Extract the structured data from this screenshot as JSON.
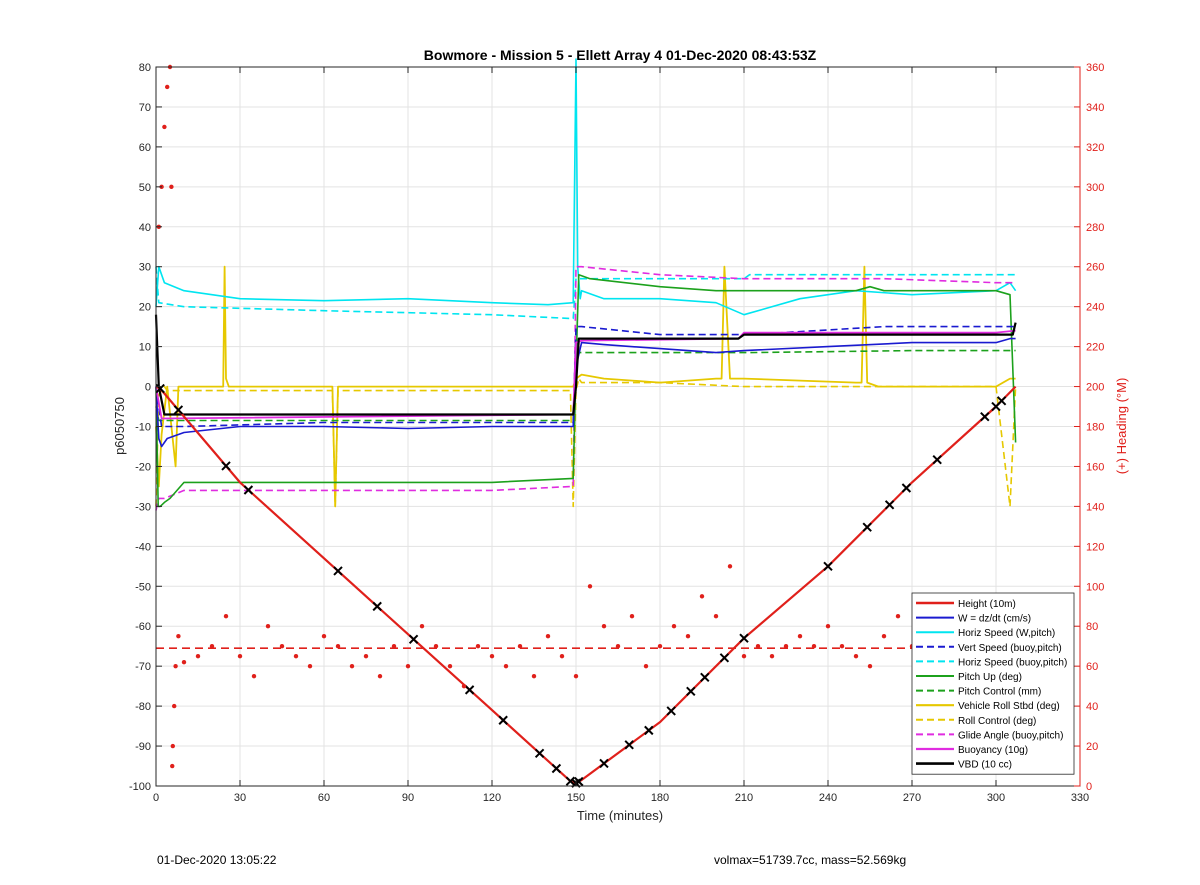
{
  "figure": {
    "footer_left": "01-Dec-2020 13:05:22",
    "footer_right": "volmax=51739.7cc, mass=52.569kg"
  },
  "colors": {
    "height": "#e0201b",
    "w": "#1a1ad0",
    "horz_speed_w": "#00e5f0",
    "vert_speed_buoy": "#1a1ad0",
    "horiz_speed_buoy": "#00e5f0",
    "pitch_up": "#1ca11c",
    "pitch_control": "#1ca11c",
    "roll": "#e6c800",
    "roll_control": "#e6c800",
    "glide_angle": "#e02ce0",
    "buoyancy": "#e02ce0",
    "vbd": "#000000",
    "heading": "#e0201b",
    "axis_right": "#e0201b"
  },
  "chart_data": {
    "type": "line",
    "title": "Bowmore - Mission 5 - Ellett Array 4 01-Dec-2020 08:43:53Z",
    "xlabel": "Time (minutes)",
    "ylabel": "p6050750",
    "ylabel_right": "(+) Heading (°M)",
    "xlim": [
      0,
      330
    ],
    "ylim": [
      -100,
      80
    ],
    "ylim_right": [
      0,
      360
    ],
    "xticks": [
      0,
      30,
      60,
      90,
      120,
      150,
      180,
      210,
      240,
      270,
      300,
      330
    ],
    "yticks": [
      -100,
      -90,
      -80,
      -70,
      -60,
      -50,
      -40,
      -30,
      -20,
      -10,
      0,
      10,
      20,
      30,
      40,
      50,
      60,
      70,
      80
    ],
    "yticks_right": [
      0,
      20,
      40,
      60,
      80,
      100,
      120,
      140,
      160,
      180,
      200,
      220,
      240,
      260,
      280,
      300,
      320,
      340,
      360
    ],
    "grid": true,
    "legend_position": "bottom-right",
    "heading_reference": 69,
    "series": [
      {
        "name": "Height (10m)",
        "key": "height",
        "style": "solid",
        "width": 2.2,
        "x": [
          0,
          1.5,
          30,
          60,
          90,
          120,
          148,
          150,
          152,
          180,
          210,
          240,
          270,
          300,
          307
        ],
        "y": [
          0,
          -0.5,
          -24,
          -43,
          -62,
          -81,
          -98.8,
          -99.3,
          -98.5,
          -84,
          -63,
          -45,
          -24,
          -5,
          0
        ]
      },
      {
        "name": "W = dz/dt (cm/s)",
        "key": "w",
        "style": "solid",
        "width": 1.6,
        "x": [
          0,
          1,
          2,
          4,
          10,
          30,
          60,
          90,
          120,
          149,
          150,
          152,
          160,
          180,
          200,
          210,
          240,
          270,
          300,
          305,
          307
        ],
        "y": [
          0,
          -13,
          -15,
          -13,
          -11.5,
          -10,
          -10,
          -10.5,
          -10,
          -10,
          5,
          11,
          10.5,
          9.5,
          8.5,
          9,
          10,
          11,
          11,
          12,
          12
        ]
      },
      {
        "name": "Horiz Speed (W,pitch)",
        "key": "horz_speed_w",
        "style": "solid",
        "width": 1.6,
        "x": [
          0,
          1,
          3,
          10,
          20,
          30,
          60,
          90,
          120,
          140,
          149,
          150,
          150.6,
          151.5,
          152,
          160,
          180,
          200,
          210,
          230,
          250,
          270,
          300,
          305,
          307
        ],
        "y": [
          20,
          30,
          26,
          24,
          23,
          22,
          21.5,
          22,
          21,
          20.5,
          21,
          82,
          30,
          22,
          24,
          22,
          22,
          21,
          18,
          22,
          24,
          23,
          24,
          26,
          24
        ]
      },
      {
        "name": "Vert Speed (buoy,pitch)",
        "key": "vert_speed_buoy",
        "style": "dashed",
        "width": 1.6,
        "x": [
          0,
          2,
          10,
          60,
          120,
          149,
          150,
          152,
          180,
          210,
          212,
          260,
          300,
          307
        ],
        "y": [
          0,
          -10,
          -10,
          -9,
          -9,
          -9,
          15,
          15,
          13,
          13,
          13,
          15,
          15,
          15
        ]
      },
      {
        "name": "Horiz Speed (buoy,pitch)",
        "key": "horiz_speed_buoy",
        "style": "dashed",
        "width": 1.6,
        "x": [
          0,
          1,
          10,
          60,
          120,
          149,
          150,
          152,
          180,
          200,
          210,
          212,
          260,
          300,
          307
        ],
        "y": [
          30,
          21,
          20,
          19,
          18,
          17,
          27,
          27,
          27,
          27,
          27,
          28,
          28,
          28,
          28
        ]
      },
      {
        "name": "Pitch Up (deg)",
        "key": "pitch_up",
        "style": "solid",
        "width": 1.6,
        "x": [
          0,
          0.8,
          1.5,
          3,
          5,
          10,
          60,
          120,
          149,
          150,
          151,
          155,
          180,
          200,
          250,
          255,
          260,
          270,
          300,
          305,
          307
        ],
        "y": [
          0,
          -30,
          -30,
          -29,
          -28,
          -24,
          -24,
          -24,
          -23,
          5,
          28,
          27,
          25,
          24,
          24,
          25,
          24,
          24,
          24,
          23,
          -14
        ]
      },
      {
        "name": "Pitch Control (mm)",
        "key": "pitch_control",
        "style": "dashed",
        "width": 1.6,
        "x": [
          0,
          1,
          10,
          60,
          120,
          149,
          150,
          152,
          180,
          210,
          212,
          270,
          300,
          307
        ],
        "y": [
          -5,
          -8.5,
          -8.5,
          -8.5,
          -8.5,
          -8.5,
          8.5,
          8.5,
          8.5,
          8.5,
          8.5,
          9,
          9,
          9
        ]
      },
      {
        "name": "Vehicle Roll Stbd (deg)",
        "key": "roll",
        "style": "solid",
        "width": 1.8,
        "x": [
          0,
          1,
          2,
          4,
          7,
          8,
          10,
          24,
          24.5,
          25,
          26,
          30,
          60,
          63,
          64,
          65,
          90,
          120,
          149,
          150,
          152,
          160,
          180,
          200,
          202,
          203,
          205,
          210,
          250,
          252,
          253,
          254,
          258,
          270,
          300,
          305,
          307
        ],
        "y": [
          -10,
          -25,
          -12,
          0,
          -20,
          0,
          0,
          0,
          30,
          2,
          0,
          0,
          0,
          0,
          -30,
          0,
          0,
          0,
          0,
          2,
          3,
          2,
          1,
          2,
          2,
          30,
          2,
          2,
          1,
          1,
          30,
          1,
          0,
          0,
          0,
          2,
          2
        ]
      },
      {
        "name": "Roll Control (deg)",
        "key": "roll_control",
        "style": "dashed",
        "width": 1.6,
        "x": [
          0,
          1,
          3,
          4,
          20,
          60,
          63,
          64,
          65,
          100,
          148,
          149,
          150,
          151,
          152,
          180,
          210,
          240,
          270,
          300,
          305,
          307
        ],
        "y": [
          -30,
          -2,
          0,
          -1,
          -1,
          -1,
          -1,
          -30,
          -1,
          -1,
          -1,
          -30,
          -1,
          2,
          1,
          1,
          0,
          0,
          0,
          0,
          -30,
          0
        ]
      },
      {
        "name": "Glide Angle (buoy,pitch)",
        "key": "glide_angle",
        "style": "dashed",
        "width": 1.6,
        "x": [
          0,
          1,
          3,
          10,
          60,
          120,
          149,
          150,
          152,
          180,
          210,
          212,
          260,
          300,
          305,
          307
        ],
        "y": [
          -31,
          -28,
          -28,
          -26,
          -26,
          -26,
          -25,
          30,
          30,
          28,
          27,
          27,
          27,
          26,
          26,
          26
        ]
      },
      {
        "name": "Buoyancy (10g)",
        "key": "buoyancy",
        "style": "solid",
        "width": 1.8,
        "x": [
          0,
          2,
          149,
          150,
          152,
          208,
          210,
          260,
          300,
          307
        ],
        "y": [
          0,
          -8,
          -7,
          11,
          11.5,
          12,
          13.5,
          13.5,
          13.5,
          14
        ]
      },
      {
        "name": "VBD (10 cc)",
        "key": "vbd",
        "style": "solid",
        "width": 2.2,
        "x": [
          0,
          1,
          3,
          149,
          150,
          151,
          208,
          210,
          306,
          307
        ],
        "y": [
          18,
          0,
          -7,
          -7,
          0,
          12,
          12,
          13,
          13,
          16
        ]
      }
    ],
    "heading_points": {
      "x": [
        1,
        2,
        3,
        4,
        5,
        5.5,
        5.8,
        6,
        6.5,
        7,
        8,
        10,
        15,
        20,
        25,
        30,
        35,
        40,
        45,
        50,
        55,
        60,
        65,
        70,
        75,
        80,
        85,
        90,
        95,
        100,
        105,
        110,
        115,
        120,
        125,
        130,
        135,
        140,
        145,
        150,
        155,
        160,
        165,
        170,
        175,
        180,
        185,
        190,
        195,
        200,
        205,
        210,
        215,
        220,
        225,
        230,
        235,
        240,
        245,
        250,
        255,
        260,
        265,
        270,
        275,
        280,
        285,
        290,
        295,
        300
      ],
      "y": [
        280,
        300,
        330,
        350,
        360,
        300,
        10,
        20,
        40,
        60,
        75,
        62,
        65,
        70,
        85,
        65,
        55,
        80,
        70,
        65,
        60,
        75,
        70,
        60,
        65,
        55,
        70,
        60,
        80,
        70,
        60,
        50,
        70,
        65,
        60,
        70,
        55,
        75,
        65,
        55,
        100,
        80,
        70,
        85,
        60,
        70,
        80,
        75,
        95,
        85,
        110,
        65,
        70,
        65,
        70,
        75,
        70,
        80,
        70,
        65,
        60,
        75,
        85,
        70,
        90,
        80,
        75,
        70,
        85,
        80
      ]
    }
  }
}
